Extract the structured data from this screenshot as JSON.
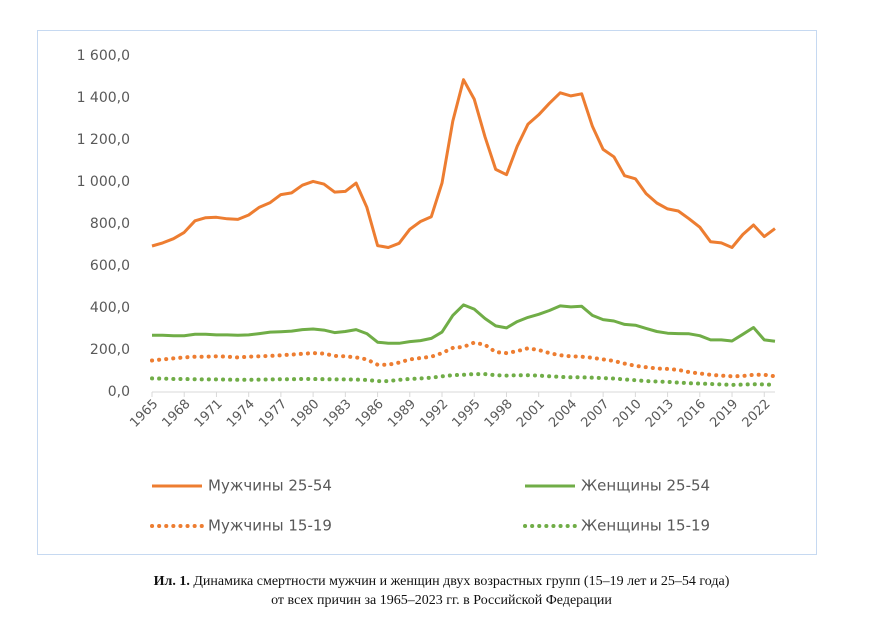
{
  "chart_data": {
    "type": "line",
    "x": [
      1965,
      1966,
      1967,
      1968,
      1969,
      1970,
      1971,
      1972,
      1973,
      1974,
      1975,
      1976,
      1977,
      1978,
      1979,
      1980,
      1981,
      1982,
      1983,
      1984,
      1985,
      1986,
      1987,
      1988,
      1989,
      1990,
      1991,
      1992,
      1993,
      1994,
      1995,
      1996,
      1997,
      1998,
      1999,
      2000,
      2001,
      2002,
      2003,
      2004,
      2005,
      2006,
      2007,
      2008,
      2009,
      2010,
      2011,
      2012,
      2013,
      2014,
      2015,
      2016,
      2017,
      2018,
      2019,
      2020,
      2021,
      2022,
      2023
    ],
    "xlim": [
      1965,
      2023
    ],
    "xticks": [
      1965,
      1968,
      1971,
      1974,
      1977,
      1980,
      1983,
      1986,
      1989,
      1992,
      1995,
      1998,
      2001,
      2004,
      2007,
      2010,
      2013,
      2016,
      2019,
      2022
    ],
    "ylim": [
      0,
      1600
    ],
    "yticks": [
      {
        "value": 0,
        "label": "0,0"
      },
      {
        "value": 200,
        "label": "200,0"
      },
      {
        "value": 400,
        "label": "400,0"
      },
      {
        "value": 600,
        "label": "600,0"
      },
      {
        "value": 800,
        "label": "800,0"
      },
      {
        "value": 1000,
        "label": "1 000,0"
      },
      {
        "value": 1200,
        "label": "1 200,0"
      },
      {
        "value": 1400,
        "label": "1 400,0"
      },
      {
        "value": 1600,
        "label": "1 600,0"
      }
    ],
    "grid": false,
    "series": [
      {
        "name": "Мужчины 25-54",
        "color": "#ed7d31",
        "style": "solid",
        "values": [
          695,
          710,
          730,
          760,
          815,
          830,
          832,
          825,
          822,
          843,
          880,
          902,
          940,
          948,
          985,
          1003,
          990,
          952,
          955,
          995,
          880,
          697,
          688,
          708,
          775,
          812,
          835,
          995,
          1290,
          1487,
          1395,
          1215,
          1060,
          1035,
          1170,
          1275,
          1320,
          1375,
          1425,
          1410,
          1420,
          1265,
          1155,
          1120,
          1030,
          1015,
          945,
          900,
          872,
          862,
          825,
          785,
          715,
          710,
          688,
          750,
          795,
          740,
          778
        ]
      },
      {
        "name": "Женщины 25-54",
        "color": "#70ad47",
        "style": "solid",
        "values": [
          270,
          270,
          268,
          268,
          275,
          275,
          272,
          272,
          270,
          272,
          278,
          285,
          287,
          290,
          297,
          300,
          295,
          283,
          288,
          297,
          278,
          237,
          232,
          232,
          240,
          245,
          255,
          285,
          365,
          415,
          395,
          350,
          315,
          305,
          335,
          355,
          370,
          388,
          410,
          405,
          408,
          365,
          345,
          338,
          322,
          318,
          303,
          288,
          280,
          278,
          277,
          268,
          248,
          248,
          243,
          275,
          307,
          248,
          242
        ]
      },
      {
        "name": "Мужчины 15-19",
        "color": "#ed7d31",
        "style": "dotted",
        "values": [
          150,
          155,
          160,
          165,
          168,
          168,
          170,
          168,
          165,
          168,
          170,
          172,
          175,
          178,
          182,
          185,
          183,
          172,
          170,
          165,
          155,
          130,
          130,
          140,
          155,
          162,
          168,
          185,
          210,
          215,
          235,
          225,
          190,
          185,
          195,
          208,
          200,
          185,
          175,
          170,
          168,
          163,
          155,
          148,
          135,
          125,
          118,
          112,
          110,
          105,
          95,
          88,
          82,
          78,
          75,
          76,
          82,
          82,
          75
        ]
      },
      {
        "name": "Женщины 15-19",
        "color": "#70ad47",
        "style": "dotted",
        "values": [
          65,
          64,
          62,
          62,
          61,
          60,
          60,
          59,
          58,
          58,
          59,
          60,
          61,
          61,
          62,
          62,
          61,
          60,
          60,
          59,
          57,
          52,
          52,
          58,
          62,
          65,
          68,
          75,
          80,
          82,
          85,
          85,
          80,
          78,
          80,
          80,
          78,
          75,
          72,
          70,
          70,
          68,
          66,
          64,
          60,
          56,
          52,
          50,
          48,
          45,
          42,
          40,
          38,
          36,
          34,
          35,
          37,
          36,
          34
        ]
      }
    ]
  },
  "caption": {
    "label": "Ил. 1.",
    "line1": "Динамика смертности мужчин и женщин двух возрастных групп (15–19 лет и 25–54 года)",
    "line2": "от всех причин за 1965–2023 гг. в Российской Федерации"
  }
}
